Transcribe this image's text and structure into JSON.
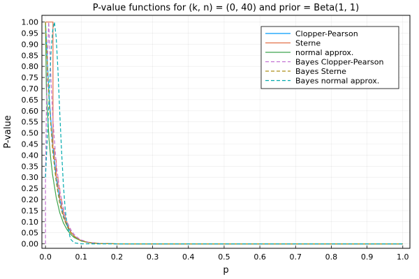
{
  "chart_data": {
    "type": "line",
    "title": "P-value functions for (k, n) = (0, 40) and prior = Beta(1, 1)",
    "xlabel": "p",
    "ylabel": "P-value",
    "xlim": [
      -0.01,
      1.02
    ],
    "ylim": [
      -0.02,
      1.03
    ],
    "xticks": [
      0.0,
      0.1,
      0.2,
      0.3,
      0.4,
      0.5,
      0.6,
      0.7,
      0.8,
      0.9,
      1.0
    ],
    "xtick_labels": [
      "0.0",
      "0.1",
      "0.2",
      "0.3",
      "0.4",
      "0.5",
      "0.6",
      "0.7",
      "0.8",
      "0.9",
      "1.0"
    ],
    "yticks": [
      0.0,
      0.05,
      0.1,
      0.15,
      0.2,
      0.25,
      0.3,
      0.35,
      0.4,
      0.45,
      0.5,
      0.55,
      0.6,
      0.65,
      0.7,
      0.75,
      0.8,
      0.85,
      0.9,
      0.95,
      1.0
    ],
    "ytick_labels": [
      "0.00",
      "0.05",
      "0.10",
      "0.15",
      "0.20",
      "0.25",
      "0.30",
      "0.35",
      "0.40",
      "0.45",
      "0.50",
      "0.55",
      "0.60",
      "0.65",
      "0.70",
      "0.75",
      "0.80",
      "0.85",
      "0.90",
      "0.95",
      "1.00"
    ],
    "grid": true,
    "legend_position": "top-right",
    "series": [
      {
        "name": "Clopper-Pearson",
        "color": "#009AFA",
        "dash": "solid",
        "points": [
          [
            0.0,
            1.0
          ],
          [
            0.01,
            0.67
          ],
          [
            0.02,
            0.45
          ],
          [
            0.03,
            0.3
          ],
          [
            0.04,
            0.2
          ],
          [
            0.05,
            0.13
          ],
          [
            0.06,
            0.084
          ],
          [
            0.07,
            0.055
          ],
          [
            0.08,
            0.036
          ],
          [
            0.09,
            0.023
          ],
          [
            0.1,
            0.015
          ],
          [
            0.12,
            0.006
          ],
          [
            0.15,
            0.002
          ],
          [
            0.2,
            0.0002
          ],
          [
            0.3,
            0.0
          ],
          [
            1.0,
            0.0
          ]
        ]
      },
      {
        "name": "Sterne",
        "color": "#E26F46",
        "dash": "solid",
        "points": [
          [
            0.0,
            1.0
          ],
          [
            0.021,
            1.0
          ],
          [
            0.021,
            0.43
          ],
          [
            0.025,
            0.43
          ],
          [
            0.025,
            0.38
          ],
          [
            0.03,
            0.38
          ],
          [
            0.03,
            0.3
          ],
          [
            0.035,
            0.3
          ],
          [
            0.035,
            0.25
          ],
          [
            0.04,
            0.25
          ],
          [
            0.04,
            0.2
          ],
          [
            0.045,
            0.2
          ],
          [
            0.045,
            0.16
          ],
          [
            0.05,
            0.16
          ],
          [
            0.05,
            0.13
          ],
          [
            0.055,
            0.13
          ],
          [
            0.055,
            0.1
          ],
          [
            0.06,
            0.1
          ],
          [
            0.06,
            0.084
          ],
          [
            0.065,
            0.084
          ],
          [
            0.065,
            0.068
          ],
          [
            0.07,
            0.068
          ],
          [
            0.07,
            0.055
          ],
          [
            0.08,
            0.036
          ],
          [
            0.09,
            0.023
          ],
          [
            0.1,
            0.015
          ],
          [
            0.12,
            0.006
          ],
          [
            0.15,
            0.002
          ],
          [
            0.2,
            0.0002
          ],
          [
            0.3,
            0.0
          ],
          [
            1.0,
            0.0
          ]
        ]
      },
      {
        "name": "normal approx.",
        "color": "#3DA44D",
        "dash": "solid",
        "points": [
          [
            0.0,
            1.0
          ],
          [
            0.0025,
            0.71
          ],
          [
            0.005,
            0.61
          ],
          [
            0.01,
            0.47
          ],
          [
            0.015,
            0.38
          ],
          [
            0.02,
            0.31
          ],
          [
            0.03,
            0.21
          ],
          [
            0.04,
            0.14
          ],
          [
            0.05,
            0.095
          ],
          [
            0.06,
            0.065
          ],
          [
            0.07,
            0.044
          ],
          [
            0.08,
            0.029
          ],
          [
            0.1,
            0.013
          ],
          [
            0.12,
            0.006
          ],
          [
            0.15,
            0.002
          ],
          [
            0.2,
            0.0003
          ],
          [
            0.3,
            0.0
          ],
          [
            1.0,
            0.0
          ]
        ]
      },
      {
        "name": "Bayes Clopper-Pearson",
        "color": "#C271D2",
        "dash": "dashed",
        "points": [
          [
            0.0,
            0.0
          ],
          [
            0.0,
            0.3
          ],
          [
            0.003,
            0.62
          ],
          [
            0.006,
            0.86
          ],
          [
            0.009,
            1.0
          ],
          [
            0.014,
            0.8
          ],
          [
            0.02,
            0.58
          ],
          [
            0.03,
            0.36
          ],
          [
            0.04,
            0.24
          ],
          [
            0.05,
            0.16
          ],
          [
            0.06,
            0.1
          ],
          [
            0.07,
            0.066
          ],
          [
            0.08,
            0.043
          ],
          [
            0.09,
            0.028
          ],
          [
            0.1,
            0.018
          ],
          [
            0.12,
            0.0074
          ],
          [
            0.15,
            0.0018
          ],
          [
            0.2,
            0.0002
          ],
          [
            0.3,
            0.0
          ],
          [
            1.0,
            0.0
          ]
        ]
      },
      {
        "name": "Bayes Sterne",
        "color": "#AC8D18",
        "dash": "dashed",
        "points": [
          [
            0.0,
            1.0
          ],
          [
            0.005,
            0.82
          ],
          [
            0.01,
            0.65
          ],
          [
            0.02,
            0.42
          ],
          [
            0.03,
            0.28
          ],
          [
            0.04,
            0.18
          ],
          [
            0.05,
            0.12
          ],
          [
            0.06,
            0.08
          ],
          [
            0.07,
            0.052
          ],
          [
            0.08,
            0.034
          ],
          [
            0.09,
            0.022
          ],
          [
            0.1,
            0.014
          ],
          [
            0.12,
            0.006
          ],
          [
            0.15,
            0.0015
          ],
          [
            0.2,
            0.0002
          ],
          [
            0.3,
            0.0
          ],
          [
            1.0,
            0.0
          ]
        ]
      },
      {
        "name": "Bayes normal approx.",
        "color": "#00A9AD",
        "dash": "dashed",
        "points": [
          [
            0.0,
            0.3
          ],
          [
            0.008,
            0.58
          ],
          [
            0.015,
            0.85
          ],
          [
            0.02,
            0.96
          ],
          [
            0.025,
            1.0
          ],
          [
            0.03,
            0.93
          ],
          [
            0.035,
            0.78
          ],
          [
            0.04,
            0.59
          ],
          [
            0.045,
            0.42
          ],
          [
            0.05,
            0.27
          ],
          [
            0.055,
            0.16
          ],
          [
            0.06,
            0.09
          ],
          [
            0.07,
            0.022
          ],
          [
            0.08,
            0.005
          ],
          [
            0.1,
            0.0003
          ],
          [
            0.15,
            0.0
          ],
          [
            1.0,
            0.0
          ]
        ]
      }
    ]
  }
}
